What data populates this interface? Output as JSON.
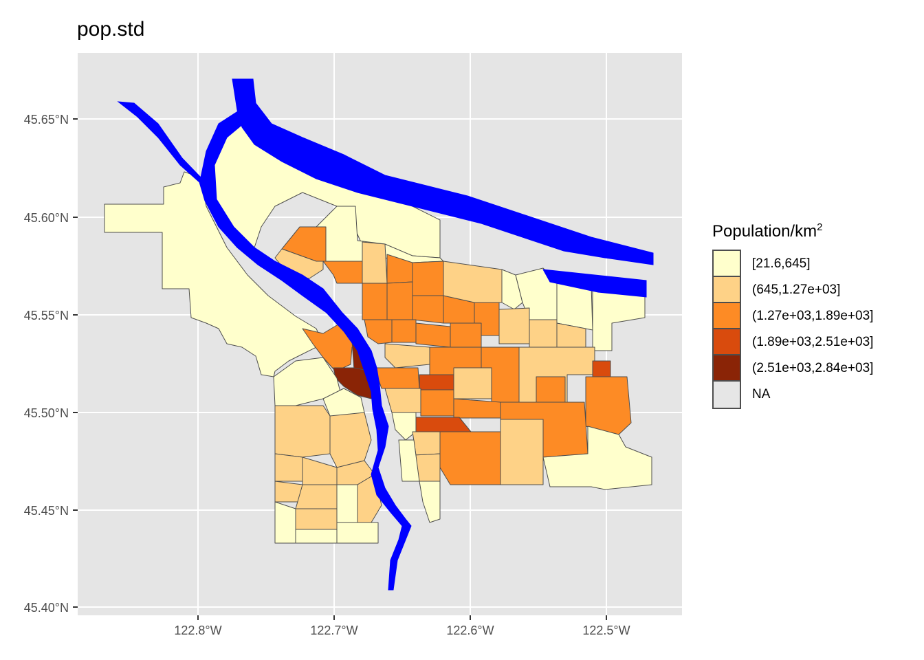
{
  "title": "pop.std",
  "axes": {
    "y_ticks": [
      "45.65°N",
      "45.60°N",
      "45.55°N",
      "45.50°N",
      "45.45°N",
      "45.40°N"
    ],
    "x_ticks": [
      "122.8°W",
      "122.7°W",
      "122.6°W",
      "122.5°W"
    ]
  },
  "legend": {
    "title_main": "Population/km",
    "title_sup": "2",
    "items": [
      {
        "label": "[21.6,645]",
        "color": "#ffffcc"
      },
      {
        "label": "(645,1.27e+03]",
        "color": "#fed287"
      },
      {
        "label": "(1.27e+03,1.89e+03]",
        "color": "#fd8b25"
      },
      {
        "label": "(1.89e+03,2.51e+03]",
        "color": "#d94b0d"
      },
      {
        "label": "(2.51e+03,2.84e+03]",
        "color": "#8a2406"
      },
      {
        "label": "NA",
        "color": "#e6e6e6"
      }
    ]
  },
  "colors": {
    "panel_bg": "#e5e5e5",
    "grid": "#ffffff",
    "river": "#0000ff",
    "tract_border": "#4d4d4d"
  }
}
